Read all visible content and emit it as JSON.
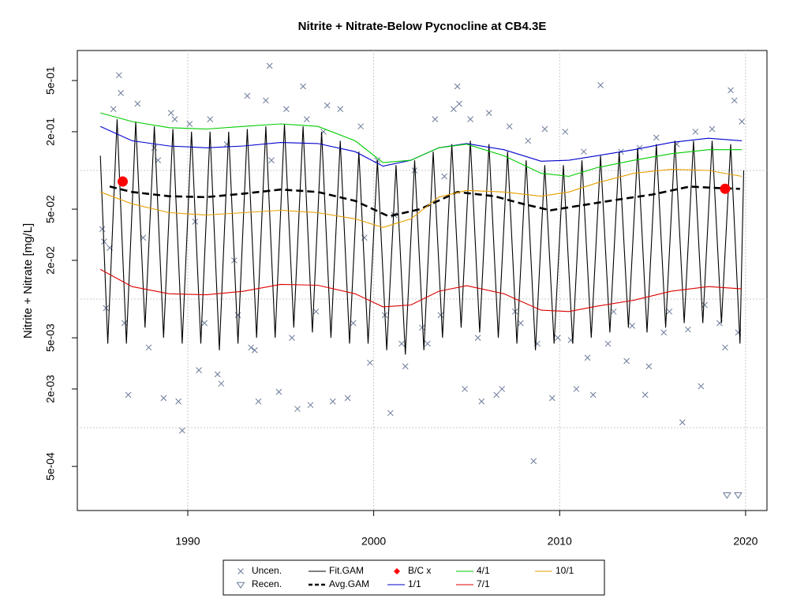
{
  "chart_data": {
    "type": "line",
    "title": "Nitrite + Nitrate-Below Pycnocline at CB4.3E",
    "y_label": "Nitrite + Nitrate [mg/L]",
    "log_y": true,
    "xlim": [
      1984.06,
      2021.15
    ],
    "ylim": [
      0.856,
      0.000227
    ],
    "xticks": [
      1990,
      2000,
      2010,
      2020
    ],
    "yticks": [
      {
        "value": 0.5,
        "label": "5e-01"
      },
      {
        "value": 0.2,
        "label": "2e-01"
      },
      {
        "value": 0.05,
        "label": "5e-02"
      },
      {
        "value": 0.02,
        "label": "2e-02"
      },
      {
        "value": 0.005,
        "label": "5e-03"
      },
      {
        "value": 0.002,
        "label": "2e-03"
      },
      {
        "value": 0.0005,
        "label": "5e-04"
      }
    ],
    "y_grid": [
      0.1,
      0.01,
      0.001
    ],
    "grid": true,
    "legend": "bottom",
    "series": [
      {
        "name": "Uncen.",
        "color": "#6b7a99",
        "marker": "x",
        "x": [
          1985.4,
          1985.5,
          1985.6,
          1985.8,
          1986.0,
          1986.3,
          1986.4,
          1986.6,
          1986.8,
          1987.3,
          1987.6,
          1987.9,
          1988.2,
          1988.4,
          1988.7,
          1989.1,
          1989.3,
          1989.5,
          1989.7,
          1990.1,
          1990.4,
          1990.6,
          1990.9,
          1991.2,
          1991.6,
          1991.8,
          1992.1,
          1992.5,
          1992.7,
          1993.2,
          1993.4,
          1993.6,
          1993.8,
          1994.2,
          1994.4,
          1994.5,
          1994.9,
          1995.3,
          1995.6,
          1995.9,
          1996.2,
          1996.4,
          1996.6,
          1996.9,
          1997.3,
          1997.5,
          1997.8,
          1998.2,
          1998.6,
          1998.9,
          1999.3,
          1999.5,
          1999.8,
          2000.2,
          2000.6,
          2000.9,
          2001.1,
          2001.5,
          2001.7,
          2002.2,
          2002.6,
          2002.9,
          2003.3,
          2003.6,
          2003.8,
          2004.3,
          2004.5,
          2004.6,
          2004.9,
          2005.2,
          2005.6,
          2005.8,
          2006.2,
          2006.6,
          2006.9,
          2007.3,
          2007.6,
          2007.9,
          2008.3,
          2008.6,
          2008.8,
          2009.2,
          2009.6,
          2009.9,
          2010.3,
          2010.6,
          2010.9,
          2011.3,
          2011.5,
          2011.8,
          2012.2,
          2012.6,
          2012.9,
          2013.3,
          2013.6,
          2013.9,
          2014.3,
          2014.6,
          2014.8,
          2015.2,
          2015.6,
          2015.9,
          2016.3,
          2016.6,
          2016.9,
          2017.3,
          2017.6,
          2017.8,
          2018.2,
          2018.6,
          2018.9,
          2019.2,
          2019.4,
          2019.6,
          2019.8
        ],
        "values": [
          0.035,
          0.028,
          0.0085,
          0.025,
          0.3,
          0.55,
          0.4,
          0.0065,
          0.0018,
          0.33,
          0.03,
          0.0042,
          0.15,
          0.12,
          0.0017,
          0.28,
          0.25,
          0.0016,
          0.00095,
          0.23,
          0.04,
          0.0028,
          0.0065,
          0.25,
          0.0026,
          0.0022,
          0.16,
          0.02,
          0.0075,
          0.38,
          0.0042,
          0.004,
          0.0016,
          0.35,
          0.65,
          0.12,
          0.0019,
          0.3,
          0.005,
          0.0014,
          0.45,
          0.25,
          0.0015,
          0.008,
          0.2,
          0.32,
          0.0016,
          0.3,
          0.0017,
          0.0065,
          0.22,
          0.03,
          0.0032,
          0.12,
          0.0075,
          0.0013,
          0.045,
          0.0045,
          0.003,
          0.1,
          0.006,
          0.0045,
          0.25,
          0.0075,
          0.09,
          0.3,
          0.45,
          0.33,
          0.002,
          0.25,
          0.005,
          0.0016,
          0.28,
          0.0018,
          0.002,
          0.22,
          0.008,
          0.0065,
          0.17,
          0.00055,
          0.0045,
          0.21,
          0.0017,
          0.005,
          0.2,
          0.0048,
          0.002,
          0.14,
          0.0035,
          0.0018,
          0.46,
          0.0045,
          0.008,
          0.14,
          0.0033,
          0.0062,
          0.15,
          0.0018,
          0.003,
          0.18,
          0.0055,
          0.008,
          0.16,
          0.0011,
          0.0058,
          0.2,
          0.0021,
          0.009,
          0.21,
          0.0065,
          0.0042,
          0.42,
          0.35,
          0.0055,
          0.24
        ]
      },
      {
        "name": "Recen.",
        "color": "#6b7a99",
        "marker": "triangle",
        "x": [
          2019.0,
          2019.6
        ],
        "values": [
          0.0003,
          0.0003
        ]
      },
      {
        "name": "Fit.GAM",
        "color": "#000000",
        "line": "solid",
        "x": [
          1985.3,
          1985.7,
          1986.2,
          1986.7,
          1987.2,
          1987.7,
          1988.2,
          1988.7,
          1989.2,
          1989.7,
          1990.2,
          1990.7,
          1991.2,
          1991.7,
          1992.2,
          1992.7,
          1993.2,
          1993.7,
          1994.2,
          1994.7,
          1995.2,
          1995.7,
          1996.2,
          1996.7,
          1997.2,
          1997.7,
          1998.2,
          1998.7,
          1999.2,
          1999.7,
          2000.2,
          2000.7,
          2001.2,
          2001.7,
          2002.2,
          2002.7,
          2003.2,
          2003.7,
          2004.2,
          2004.7,
          2005.2,
          2005.7,
          2006.2,
          2006.7,
          2007.2,
          2007.7,
          2008.2,
          2008.7,
          2009.2,
          2009.7,
          2010.2,
          2010.7,
          2011.2,
          2011.7,
          2012.2,
          2012.7,
          2013.2,
          2013.7,
          2014.2,
          2014.7,
          2015.2,
          2015.7,
          2016.2,
          2016.7,
          2017.2,
          2017.7,
          2018.2,
          2018.7,
          2019.2,
          2019.7,
          2019.9
        ],
        "values": [
          0.13,
          0.0045,
          0.25,
          0.0045,
          0.24,
          0.006,
          0.22,
          0.005,
          0.21,
          0.0045,
          0.2,
          0.0045,
          0.2,
          0.004,
          0.2,
          0.0045,
          0.21,
          0.005,
          0.22,
          0.005,
          0.23,
          0.006,
          0.22,
          0.0055,
          0.2,
          0.005,
          0.17,
          0.0045,
          0.14,
          0.0045,
          0.12,
          0.004,
          0.11,
          0.0037,
          0.12,
          0.004,
          0.14,
          0.005,
          0.16,
          0.006,
          0.17,
          0.0055,
          0.16,
          0.005,
          0.14,
          0.0045,
          0.12,
          0.004,
          0.11,
          0.0045,
          0.11,
          0.0045,
          0.12,
          0.005,
          0.13,
          0.0055,
          0.14,
          0.006,
          0.15,
          0.0055,
          0.16,
          0.006,
          0.17,
          0.0065,
          0.17,
          0.0065,
          0.17,
          0.0065,
          0.16,
          0.0045,
          0.1
        ]
      },
      {
        "name": "Avg.GAM",
        "color": "#000000",
        "line": "dashed",
        "x": [
          1985.8,
          1987,
          1989,
          1991,
          1993,
          1995,
          1997,
          1999,
          2000.8,
          2002.5,
          2004.5,
          2006.5,
          2008,
          2009.5,
          2011,
          2013,
          2015,
          2017,
          2018.5,
          2019.7
        ],
        "values": [
          0.075,
          0.068,
          0.063,
          0.062,
          0.066,
          0.071,
          0.068,
          0.058,
          0.044,
          0.05,
          0.068,
          0.063,
          0.055,
          0.049,
          0.053,
          0.059,
          0.065,
          0.075,
          0.073,
          0.072
        ]
      },
      {
        "name": "B/C x",
        "color": "#ff0000",
        "marker": "circle",
        "x": [
          1986.5,
          2018.9
        ],
        "values": [
          0.082,
          0.072
        ]
      },
      {
        "name": "1/1",
        "color": "#0000cc",
        "line": "solid",
        "x": [
          1985.3,
          1987,
          1989,
          1991,
          1993,
          1995,
          1997,
          1999,
          2000.5,
          2002,
          2003.5,
          2005,
          2007,
          2009,
          2010.5,
          2012,
          2014,
          2016,
          2018,
          2019.8
        ],
        "values": [
          0.22,
          0.17,
          0.155,
          0.15,
          0.155,
          0.165,
          0.162,
          0.14,
          0.108,
          0.12,
          0.15,
          0.162,
          0.145,
          0.118,
          0.12,
          0.13,
          0.145,
          0.165,
          0.178,
          0.17
        ]
      },
      {
        "name": "4/1",
        "color": "#00cc00",
        "line": "solid",
        "x": [
          1985.3,
          1987,
          1989,
          1991,
          1993,
          1995,
          1997,
          1999,
          2000.5,
          2002,
          2003.5,
          2005,
          2007,
          2009,
          2010.5,
          2012,
          2014,
          2016,
          2018,
          2019.8
        ],
        "values": [
          0.28,
          0.24,
          0.215,
          0.21,
          0.22,
          0.23,
          0.22,
          0.17,
          0.115,
          0.12,
          0.15,
          0.16,
          0.13,
          0.095,
          0.09,
          0.105,
          0.12,
          0.135,
          0.145,
          0.145
        ]
      },
      {
        "name": "7/1",
        "color": "#dd0000",
        "line": "solid",
        "x": [
          1985.3,
          1987,
          1989,
          1991,
          1993,
          1995,
          1997,
          1999,
          2000.5,
          2002,
          2003.5,
          2005,
          2007,
          2009,
          2010.5,
          2012,
          2014,
          2016,
          2018,
          2019.8
        ],
        "values": [
          0.017,
          0.0125,
          0.011,
          0.0108,
          0.0115,
          0.013,
          0.0128,
          0.011,
          0.0087,
          0.009,
          0.0115,
          0.0127,
          0.011,
          0.0082,
          0.008,
          0.0088,
          0.0098,
          0.0115,
          0.0125,
          0.012
        ]
      },
      {
        "name": "10/1",
        "color": "#e69f00",
        "line": "solid",
        "x": [
          1985.3,
          1987,
          1989,
          1991,
          1993,
          1995,
          1997,
          1999,
          2000.5,
          2002,
          2003.5,
          2005,
          2007,
          2009,
          2010.5,
          2012,
          2014,
          2016,
          2018,
          2019.8
        ],
        "values": [
          0.068,
          0.055,
          0.047,
          0.045,
          0.047,
          0.049,
          0.047,
          0.042,
          0.036,
          0.042,
          0.062,
          0.07,
          0.068,
          0.063,
          0.068,
          0.08,
          0.095,
          0.102,
          0.1,
          0.09
        ]
      }
    ]
  }
}
